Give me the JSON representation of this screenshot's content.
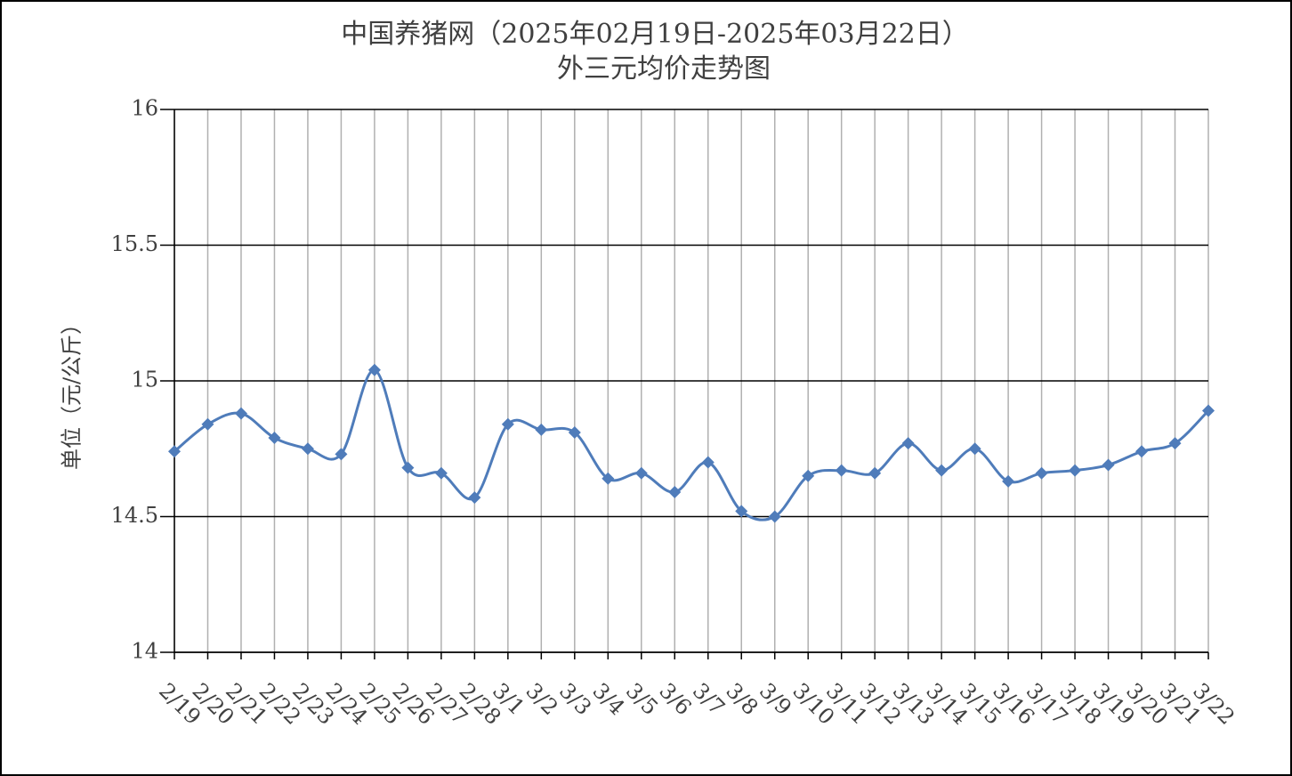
{
  "chart_data": {
    "type": "line",
    "title": "中国养猪网（2025年02月19日-2025年03月22日）",
    "subtitle": "外三元均价走势图",
    "y_label": "单位（元/公斤）",
    "categories": [
      "2/19",
      "2/20",
      "2/21",
      "2/22",
      "2/23",
      "2/24",
      "2/25",
      "2/26",
      "2/27",
      "2/28",
      "3/1",
      "3/2",
      "3/3",
      "3/4",
      "3/5",
      "3/6",
      "3/7",
      "3/8",
      "3/9",
      "3/10",
      "3/11",
      "3/12",
      "3/13",
      "3/14",
      "3/15",
      "3/16",
      "3/17",
      "3/18",
      "3/19",
      "3/20",
      "3/21",
      "3/22"
    ],
    "series": [
      {
        "color": "#4f7cba",
        "values": [
          14.74,
          14.84,
          14.88,
          14.79,
          14.75,
          14.73,
          15.04,
          14.68,
          14.66,
          14.57,
          14.84,
          14.82,
          14.81,
          14.64,
          14.66,
          14.59,
          14.7,
          14.52,
          14.5,
          14.65,
          14.67,
          14.66,
          14.77,
          14.67,
          14.75,
          14.63,
          14.66,
          14.67,
          14.69,
          14.74,
          14.77,
          14.89
        ]
      }
    ],
    "ylim": [
      14,
      16
    ],
    "yticks": [
      14,
      14.5,
      15,
      15.5,
      16
    ],
    "grid": true,
    "smooth": true
  }
}
